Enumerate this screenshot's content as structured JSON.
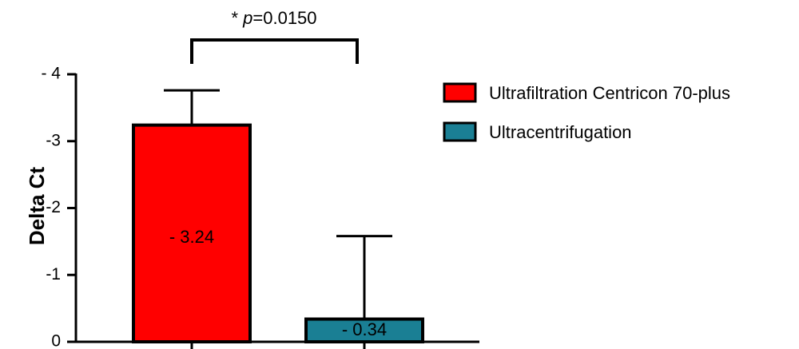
{
  "chart_data": {
    "type": "bar",
    "ylabel": "Delta Ct",
    "ylim": [
      0,
      -4
    ],
    "yticks": [
      0,
      -1,
      -2,
      -3,
      -4
    ],
    "ytick_labels": [
      "0",
      "-1",
      "-2",
      "-3",
      "- 4"
    ],
    "grid": false,
    "legend_position": "top-right",
    "series": [
      {
        "name": "Ultrafiltration Centricon 70-plus",
        "value": -3.24,
        "error": 0.52,
        "data_label": "- 3.24",
        "color": "#ff0000"
      },
      {
        "name": "Ultracentrifugation",
        "value": -0.34,
        "error": 1.24,
        "data_label": "- 0.34",
        "color": "#1a7f94"
      }
    ],
    "significance": {
      "prefix": "* ",
      "p_symbol": "p",
      "value_text": "=0.0150"
    }
  }
}
